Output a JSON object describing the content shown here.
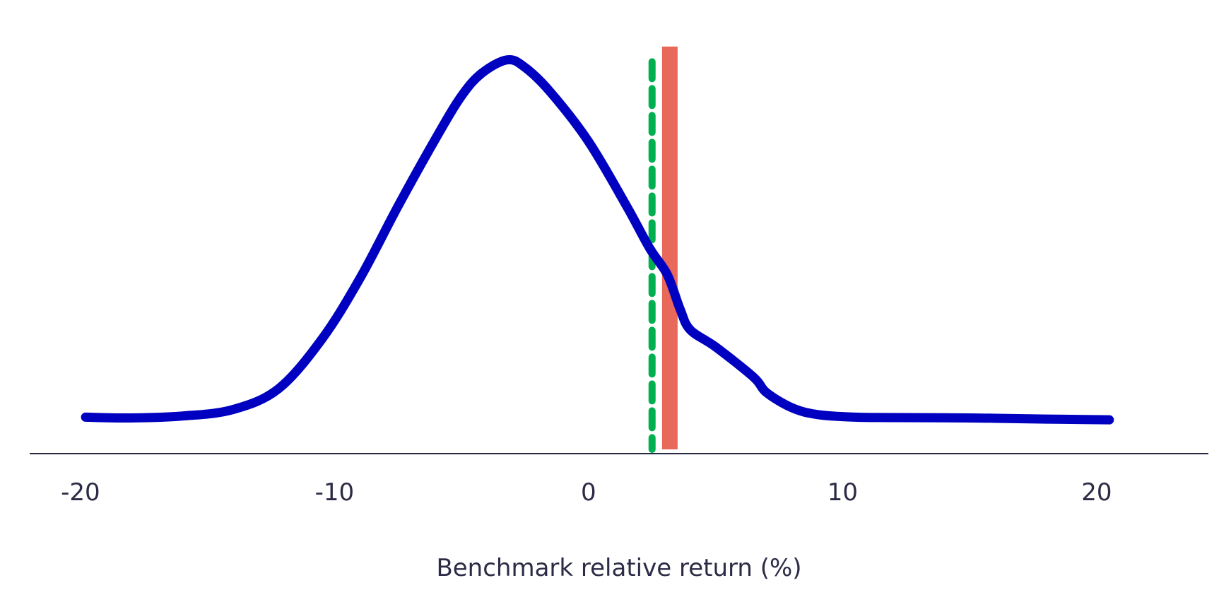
{
  "chart_data": {
    "type": "line",
    "title": "",
    "xlabel": "Benchmark relative return (%)",
    "ylabel": "",
    "xlim": [
      -22,
      24.4
    ],
    "ylim": [
      0,
      1.0
    ],
    "x_ticks": [
      -20,
      -10,
      0,
      10,
      20
    ],
    "x_tick_labels": [
      "-20",
      "-10",
      "0",
      "10",
      "20"
    ],
    "grid": false,
    "legend": "none",
    "series": [
      {
        "color": "#0000c0",
        "points": [
          [
            -19.8,
            0.055
          ],
          [
            -18,
            0.053
          ],
          [
            -16,
            0.058
          ],
          [
            -14,
            0.075
          ],
          [
            -12.2,
            0.13
          ],
          [
            -10.5,
            0.26
          ],
          [
            -9,
            0.42
          ],
          [
            -7.5,
            0.61
          ],
          [
            -6,
            0.79
          ],
          [
            -5,
            0.9
          ],
          [
            -4.2,
            0.96
          ],
          [
            -3.2,
            0.995
          ],
          [
            -2.5,
            0.975
          ],
          [
            -1.5,
            0.91
          ],
          [
            0,
            0.78
          ],
          [
            1.5,
            0.61
          ],
          [
            2.4,
            0.5
          ],
          [
            3.1,
            0.43
          ],
          [
            3.6,
            0.34
          ],
          [
            4.0,
            0.285
          ],
          [
            5.0,
            0.24
          ],
          [
            6.5,
            0.16
          ],
          [
            7.0,
            0.12
          ],
          [
            8.0,
            0.08
          ],
          [
            9.0,
            0.062
          ],
          [
            10.5,
            0.055
          ],
          [
            12,
            0.054
          ],
          [
            15,
            0.053
          ],
          [
            18,
            0.05
          ],
          [
            20.5,
            0.048
          ]
        ]
      }
    ],
    "reference_lines": [
      {
        "x": 2.5,
        "color": "#00b050",
        "style": "dashed",
        "ymax": 0.99
      },
      {
        "x": 3.2,
        "color": "#e8685a",
        "style": "solid-thick",
        "ymax": 1.03
      }
    ],
    "colors": {
      "axis": "#2b2b45",
      "text": "#2b2b45"
    }
  }
}
